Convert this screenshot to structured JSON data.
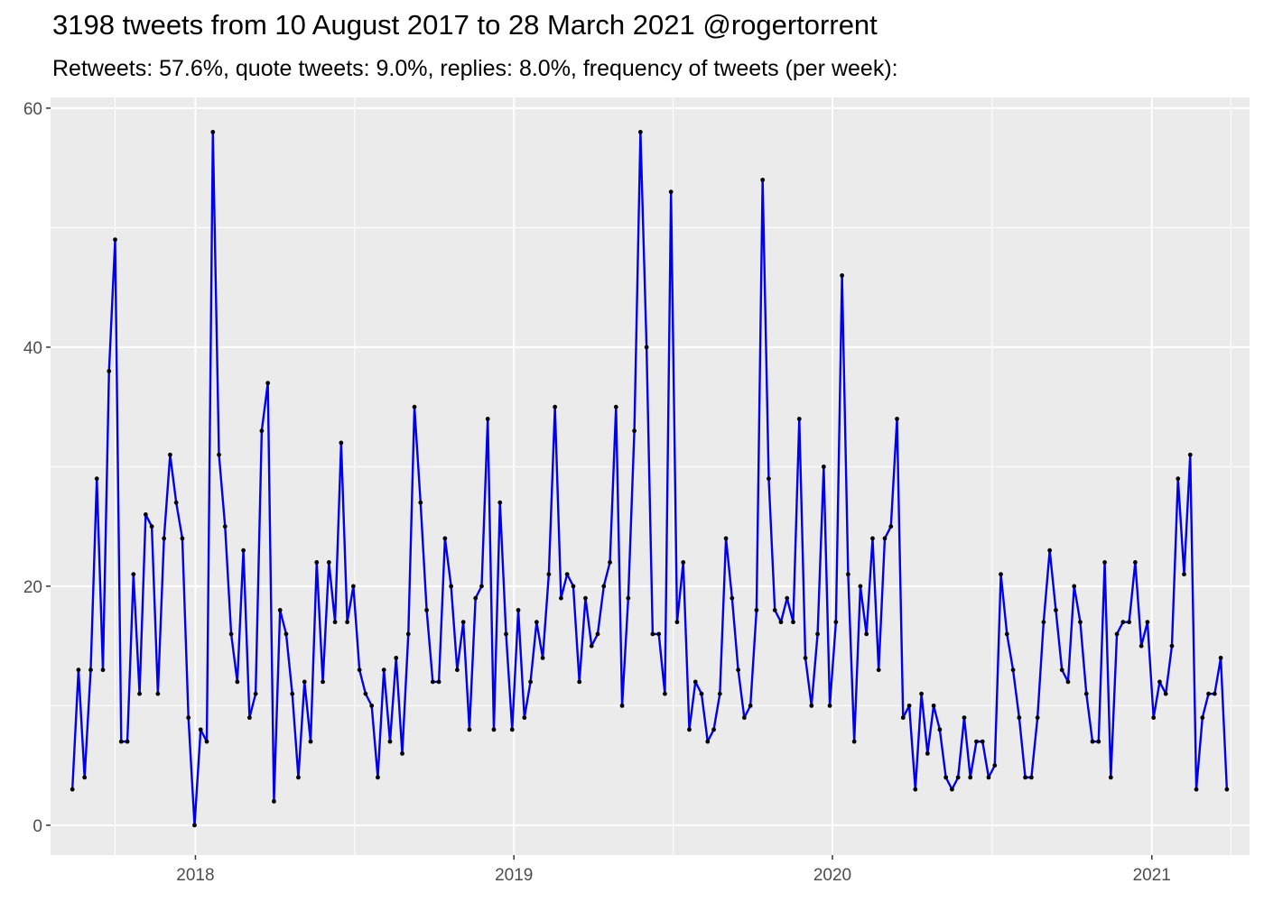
{
  "chart_data": {
    "type": "line",
    "title": "3198 tweets from 10 August 2017 to 28 March 2021 @rogertorrent",
    "subtitle": "Retweets: 57.6%, quote tweets: 9.0%, replies: 8.0%, frequency of tweets (per week):",
    "xlabel": "",
    "ylabel": "",
    "x_start": "2017-08-13",
    "x_step_days": 7,
    "xlim": [
      "2017-07-19",
      "2021-04-23"
    ],
    "ylim": [
      -2.5,
      60.9
    ],
    "x_ticks": [
      {
        "label": "2018",
        "date": "2018-01-01"
      },
      {
        "label": "2019",
        "date": "2019-01-01"
      },
      {
        "label": "2020",
        "date": "2020-01-01"
      },
      {
        "label": "2021",
        "date": "2021-01-01"
      }
    ],
    "y_ticks": [
      0,
      20,
      40,
      60
    ],
    "grid": true,
    "line_color": "#0000ee",
    "point_color": "#000000",
    "panel_color": "#ebebeb",
    "values": [
      3,
      13,
      4,
      13,
      29,
      13,
      38,
      49,
      7,
      7,
      21,
      11,
      26,
      25,
      11,
      24,
      31,
      27,
      24,
      9,
      0,
      8,
      7,
      58,
      31,
      25,
      16,
      12,
      23,
      9,
      11,
      33,
      37,
      2,
      18,
      16,
      11,
      4,
      12,
      7,
      22,
      12,
      22,
      17,
      32,
      17,
      20,
      13,
      11,
      10,
      4,
      13,
      7,
      14,
      6,
      16,
      35,
      27,
      18,
      12,
      12,
      24,
      20,
      13,
      17,
      8,
      19,
      20,
      34,
      8,
      27,
      16,
      8,
      18,
      9,
      12,
      17,
      14,
      21,
      35,
      19,
      21,
      20,
      12,
      19,
      15,
      16,
      20,
      22,
      35,
      10,
      19,
      33,
      58,
      40,
      16,
      16,
      11,
      53,
      17,
      22,
      8,
      12,
      11,
      7,
      8,
      11,
      24,
      19,
      13,
      9,
      10,
      18,
      54,
      29,
      18,
      17,
      19,
      17,
      34,
      14,
      10,
      16,
      30,
      10,
      17,
      46,
      21,
      7,
      20,
      16,
      24,
      13,
      24,
      25,
      34,
      9,
      10,
      3,
      11,
      6,
      10,
      8,
      4,
      3,
      4,
      9,
      4,
      7,
      7,
      4,
      5,
      21,
      16,
      13,
      9,
      4,
      4,
      9,
      17,
      23,
      18,
      13,
      12,
      20,
      17,
      11,
      7,
      7,
      22,
      4,
      16,
      17,
      17,
      22,
      15,
      17,
      9,
      12,
      11,
      15,
      29,
      21,
      31,
      3,
      9,
      11,
      11,
      14,
      3
    ]
  }
}
